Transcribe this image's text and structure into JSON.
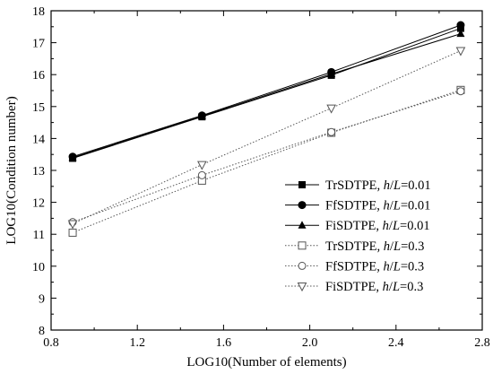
{
  "chart_data": {
    "type": "line",
    "title": "",
    "xlabel": "LOG10(Number of elements)",
    "ylabel": "LOG10(Condition number)",
    "xlim": [
      0.8,
      2.8
    ],
    "ylim": [
      8,
      18
    ],
    "xticks": [
      0.8,
      1.2,
      1.6,
      2.0,
      2.4,
      2.8
    ],
    "yticks": [
      8,
      9,
      10,
      11,
      12,
      13,
      14,
      15,
      16,
      17,
      18
    ],
    "xtick_labels": [
      "0.8",
      "1.2",
      "1.6",
      "2.0",
      "2.4",
      "2.8"
    ],
    "ytick_labels": [
      "8",
      "9",
      "10",
      "11",
      "12",
      "13",
      "14",
      "15",
      "16",
      "17",
      "18"
    ],
    "grid": false,
    "legend_position": "lower-right",
    "x": [
      0.9,
      1.5,
      2.1,
      2.7
    ],
    "series": [
      {
        "name": "TrSDTPE, h/L=0.01",
        "legend_prefix": "TrSDTPE, ",
        "legend_h": "h",
        "legend_slash": "/",
        "legend_L": "L",
        "legend_suffix": "=0.01",
        "marker": "square-filled",
        "line": "solid",
        "values": [
          13.38,
          14.68,
          15.98,
          17.45
        ]
      },
      {
        "name": "FfSDTPE, h/L=0.01",
        "legend_prefix": "FfSDTPE, ",
        "legend_h": "h",
        "legend_slash": "/",
        "legend_L": "L",
        "legend_suffix": "=0.01",
        "marker": "circle-filled",
        "line": "solid",
        "values": [
          13.43,
          14.72,
          16.08,
          17.55
        ]
      },
      {
        "name": "FiSDTPE, h/L=0.01",
        "legend_prefix": "FiSDTPE, ",
        "legend_h": "h",
        "legend_slash": "/",
        "legend_L": "L",
        "legend_suffix": "=0.01",
        "marker": "triangle-up-filled",
        "line": "solid",
        "values": [
          13.4,
          14.7,
          16.02,
          17.28
        ]
      },
      {
        "name": "TrSDTPE, h/L=0.3",
        "legend_prefix": "TrSDTPE, ",
        "legend_h": "h",
        "legend_slash": "/",
        "legend_L": "L",
        "legend_suffix": "=0.3",
        "marker": "square-open",
        "line": "dotted",
        "values": [
          11.05,
          12.68,
          14.18,
          15.52
        ]
      },
      {
        "name": "FfSDTPE, h/L=0.3",
        "legend_prefix": "FfSDTPE, ",
        "legend_h": "h",
        "legend_slash": "/",
        "legend_L": "L",
        "legend_suffix": "=0.3",
        "marker": "circle-open",
        "line": "dotted",
        "values": [
          11.38,
          12.85,
          14.2,
          15.48
        ]
      },
      {
        "name": "FiSDTPE, h/L=0.3",
        "legend_prefix": "FiSDTPE, ",
        "legend_h": "h",
        "legend_slash": "/",
        "legend_L": "L",
        "legend_suffix": "=0.3",
        "marker": "triangle-down-open",
        "line": "dotted",
        "values": [
          11.33,
          13.18,
          14.95,
          16.75
        ]
      }
    ]
  }
}
